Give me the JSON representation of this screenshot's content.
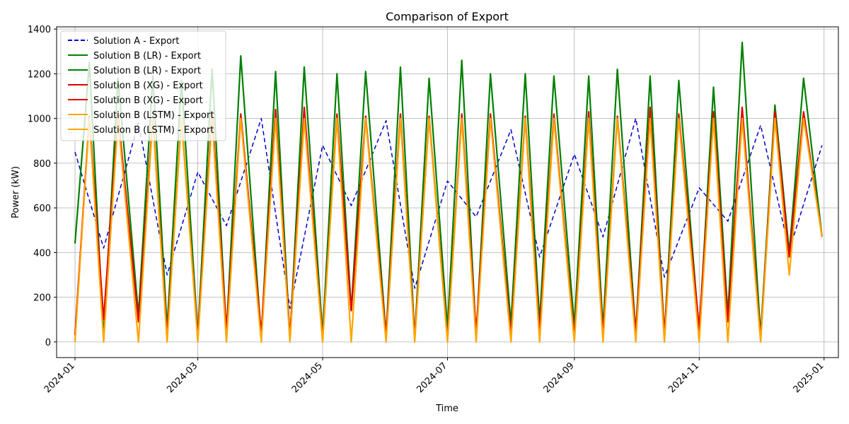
{
  "chart_data": {
    "type": "line",
    "title": "Comparison of Export",
    "xlabel": "Time",
    "ylabel": "Power (kW)",
    "x_range": [
      "2023-12-23",
      "2025-01-08"
    ],
    "ylim": [
      -70,
      1410
    ],
    "grid": true,
    "legend_placement": "top-left",
    "x_ticks": [
      "2024-01",
      "2024-03",
      "2024-05",
      "2024-07",
      "2024-09",
      "2024-11",
      "2025-01"
    ],
    "y_ticks": [
      0,
      200,
      400,
      600,
      800,
      1000,
      1200,
      1400
    ],
    "y_tick_labels": [
      "0",
      "200",
      "400",
      "600",
      "800",
      "1000",
      "1200",
      "1400"
    ],
    "series": [
      {
        "name": "Solution A - Export",
        "color": "#0000cc",
        "style": "dashed",
        "x": [
          "2024-01-01",
          "2024-01-15",
          "2024-02-01",
          "2024-02-15",
          "2024-03-01",
          "2024-03-15",
          "2024-04-01",
          "2024-04-15",
          "2024-05-01",
          "2024-05-15",
          "2024-06-01",
          "2024-06-15",
          "2024-07-01",
          "2024-07-15",
          "2024-08-01",
          "2024-08-15",
          "2024-09-01",
          "2024-09-15",
          "2024-10-01",
          "2024-10-15",
          "2024-11-01",
          "2024-11-15",
          "2024-12-01",
          "2024-12-15",
          "2024-12-31"
        ],
        "values": [
          850,
          420,
          980,
          300,
          760,
          520,
          1000,
          150,
          880,
          610,
          990,
          240,
          720,
          560,
          950,
          380,
          840,
          470,
          1000,
          290,
          690,
          540,
          970,
          410,
          880
        ]
      },
      {
        "name": "Solution B (LR) - Export",
        "color": "#008000",
        "style": "solid",
        "x": [
          "2024-01-01",
          "2024-01-08",
          "2024-01-15",
          "2024-01-22",
          "2024-02-01",
          "2024-02-08",
          "2024-02-15",
          "2024-02-22",
          "2024-03-01",
          "2024-03-08",
          "2024-03-15",
          "2024-03-22",
          "2024-04-01",
          "2024-04-08",
          "2024-04-15",
          "2024-04-22",
          "2024-05-01",
          "2024-05-08",
          "2024-05-15",
          "2024-05-22",
          "2024-06-01",
          "2024-06-08",
          "2024-06-15",
          "2024-06-22",
          "2024-07-01",
          "2024-07-08",
          "2024-07-15",
          "2024-07-22",
          "2024-08-01",
          "2024-08-08",
          "2024-08-15",
          "2024-08-22",
          "2024-09-01",
          "2024-09-08",
          "2024-09-15",
          "2024-09-22",
          "2024-10-01",
          "2024-10-08",
          "2024-10-15",
          "2024-10-22",
          "2024-11-01",
          "2024-11-08",
          "2024-11-15",
          "2024-11-22",
          "2024-12-01",
          "2024-12-08",
          "2024-12-15",
          "2024-12-22",
          "2024-12-31"
        ],
        "values": [
          440,
          1250,
          20,
          1180,
          120,
          1190,
          60,
          1170,
          30,
          1220,
          40,
          1280,
          20,
          1210,
          10,
          1230,
          30,
          1200,
          140,
          1210,
          30,
          1230,
          20,
          1180,
          60,
          1260,
          20,
          1200,
          80,
          1200,
          90,
          1190,
          70,
          1190,
          60,
          1220,
          40,
          1190,
          30,
          1170,
          40,
          1140,
          120,
          1340,
          30,
          1060,
          400,
          1180,
          470
        ]
      },
      {
        "name": "Solution B (XG) - Export",
        "color": "#e00000",
        "style": "solid",
        "x": [
          "2024-01-01",
          "2024-01-08",
          "2024-01-15",
          "2024-01-22",
          "2024-02-01",
          "2024-02-08",
          "2024-02-15",
          "2024-02-22",
          "2024-03-01",
          "2024-03-08",
          "2024-03-15",
          "2024-03-22",
          "2024-04-01",
          "2024-04-08",
          "2024-04-15",
          "2024-04-22",
          "2024-05-01",
          "2024-05-08",
          "2024-05-15",
          "2024-05-22",
          "2024-06-01",
          "2024-06-08",
          "2024-06-15",
          "2024-06-22",
          "2024-07-01",
          "2024-07-08",
          "2024-07-15",
          "2024-07-22",
          "2024-08-01",
          "2024-08-08",
          "2024-08-15",
          "2024-08-22",
          "2024-09-01",
          "2024-09-08",
          "2024-09-15",
          "2024-09-22",
          "2024-10-01",
          "2024-10-08",
          "2024-10-15",
          "2024-10-22",
          "2024-11-01",
          "2024-11-08",
          "2024-11-15",
          "2024-11-22",
          "2024-12-01",
          "2024-12-08",
          "2024-12-15",
          "2024-12-22",
          "2024-12-31"
        ],
        "values": [
          30,
          1010,
          100,
          1020,
          90,
          1010,
          30,
          1000,
          20,
          1030,
          50,
          1020,
          40,
          1040,
          20,
          1050,
          10,
          1020,
          140,
          1010,
          30,
          1020,
          20,
          1010,
          10,
          1020,
          40,
          1020,
          30,
          1010,
          40,
          1020,
          20,
          1030,
          30,
          1010,
          40,
          1050,
          30,
          1020,
          60,
          1030,
          90,
          1050,
          10,
          1030,
          380,
          1030,
          470
        ]
      },
      {
        "name": "Solution B (LSTM) - Export",
        "color": "#ffa500",
        "style": "solid",
        "x": [
          "2024-01-01",
          "2024-01-08",
          "2024-01-15",
          "2024-01-22",
          "2024-02-01",
          "2024-02-08",
          "2024-02-15",
          "2024-02-22",
          "2024-03-01",
          "2024-03-08",
          "2024-03-15",
          "2024-03-22",
          "2024-04-01",
          "2024-04-08",
          "2024-04-15",
          "2024-04-22",
          "2024-05-01",
          "2024-05-08",
          "2024-05-15",
          "2024-05-22",
          "2024-06-01",
          "2024-06-08",
          "2024-06-15",
          "2024-06-22",
          "2024-07-01",
          "2024-07-08",
          "2024-07-15",
          "2024-07-22",
          "2024-08-01",
          "2024-08-08",
          "2024-08-15",
          "2024-08-22",
          "2024-09-01",
          "2024-09-08",
          "2024-09-15",
          "2024-09-22",
          "2024-10-01",
          "2024-10-08",
          "2024-10-15",
          "2024-10-22",
          "2024-11-01",
          "2024-11-08",
          "2024-11-15",
          "2024-11-22",
          "2024-12-01",
          "2024-12-08",
          "2024-12-15",
          "2024-12-22",
          "2024-12-31"
        ],
        "values": [
          0,
          1000,
          0,
          1000,
          0,
          1000,
          0,
          1000,
          0,
          1000,
          0,
          1000,
          0,
          1000,
          0,
          1000,
          0,
          1000,
          0,
          1000,
          0,
          1000,
          0,
          1000,
          0,
          1000,
          0,
          1000,
          0,
          1000,
          0,
          1000,
          0,
          1000,
          0,
          1000,
          0,
          1000,
          0,
          1000,
          0,
          1000,
          0,
          1000,
          0,
          1000,
          300,
          1000,
          470
        ]
      }
    ],
    "legend_entries": [
      {
        "label": "Solution A - Export",
        "color": "#0000cc",
        "style": "dashed"
      },
      {
        "label": "Solution B (LR) - Export",
        "color": "#008000",
        "style": "solid"
      },
      {
        "label": "Solution B (LR) - Export",
        "color": "#008000",
        "style": "solid"
      },
      {
        "label": "Solution B (XG) - Export",
        "color": "#e00000",
        "style": "solid"
      },
      {
        "label": "Solution B (XG) - Export",
        "color": "#e00000",
        "style": "solid"
      },
      {
        "label": "Solution B (LSTM) - Export",
        "color": "#ffa500",
        "style": "solid"
      },
      {
        "label": "Solution B (LSTM) - Export",
        "color": "#ffa500",
        "style": "solid"
      }
    ]
  }
}
